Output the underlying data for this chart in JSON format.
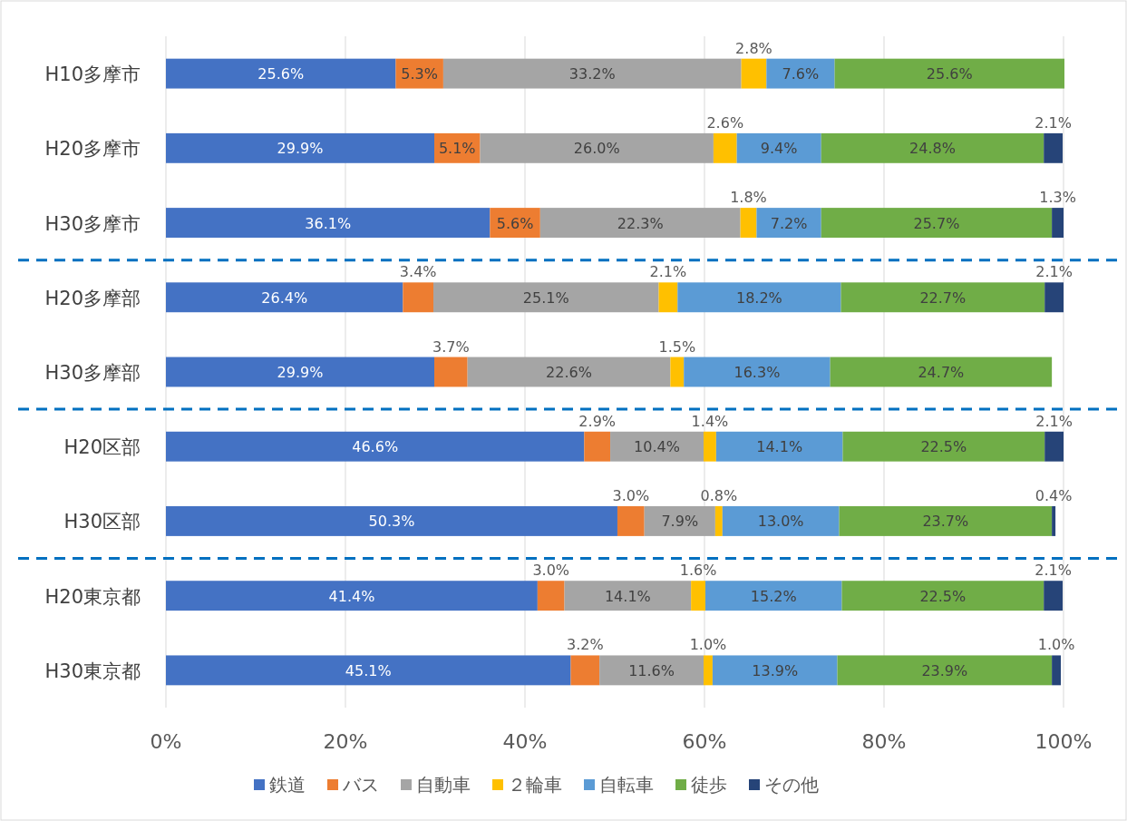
{
  "chart_data": {
    "type": "bar",
    "orientation": "horizontal",
    "stacked": true,
    "categories": [
      "H10多摩市",
      "H20多摩市",
      "H30多摩市",
      "H20多摩部",
      "H30多摩部",
      "H20区部",
      "H30区部",
      "H20東京都",
      "H30東京都"
    ],
    "series": [
      {
        "name": "鉄道",
        "color": "#4472c4",
        "values": [
          25.6,
          29.9,
          36.1,
          26.4,
          29.9,
          46.6,
          50.3,
          41.4,
          45.1
        ],
        "value_labels": [
          "25.6%",
          "29.9%",
          "36.1%",
          "26.4%",
          "29.9%",
          "46.6%",
          "50.3%",
          "41.4%",
          "45.1%"
        ]
      },
      {
        "name": "バス",
        "color": "#ed7d31",
        "values": [
          5.3,
          5.1,
          5.6,
          3.4,
          3.7,
          2.9,
          3.0,
          3.0,
          3.2
        ],
        "value_labels": [
          "5.3%",
          "5.1%",
          "5.6%",
          "3.4%",
          "3.7%",
          "2.9%",
          "3.0%",
          "3.0%",
          "3.2%"
        ]
      },
      {
        "name": "自動車",
        "color": "#a5a5a5",
        "values": [
          33.2,
          26.0,
          22.3,
          25.1,
          22.6,
          10.4,
          7.9,
          14.1,
          11.6
        ],
        "value_labels": [
          "33.2%",
          "26.0%",
          "22.3%",
          "25.1%",
          "22.6%",
          "10.4%",
          "7.9%",
          "14.1%",
          "11.6%"
        ]
      },
      {
        "name": "２輪車",
        "color": "#ffc000",
        "values": [
          2.8,
          2.6,
          1.8,
          2.1,
          1.5,
          1.4,
          0.8,
          1.6,
          1.0
        ],
        "value_labels": [
          "2.8%",
          "2.6%",
          "1.8%",
          "2.1%",
          "1.5%",
          "1.4%",
          "0.8%",
          "1.6%",
          "1.0%"
        ]
      },
      {
        "name": "自転車",
        "color": "#5b9bd5",
        "values": [
          7.6,
          9.4,
          7.2,
          18.2,
          16.3,
          14.1,
          13.0,
          15.2,
          13.9
        ],
        "value_labels": [
          "7.6%",
          "9.4%",
          "7.2%",
          "18.2%",
          "16.3%",
          "14.1%",
          "13.0%",
          "15.2%",
          "13.9%"
        ]
      },
      {
        "name": "徒歩",
        "color": "#70ad47",
        "values": [
          25.6,
          24.8,
          25.7,
          22.7,
          24.7,
          22.5,
          23.7,
          22.5,
          23.9
        ],
        "value_labels": [
          "25.6%",
          "24.8%",
          "25.7%",
          "22.7%",
          "24.7%",
          "22.5%",
          "23.7%",
          "22.5%",
          "23.9%"
        ]
      },
      {
        "name": "その他",
        "color": "#264478",
        "values": [
          null,
          2.1,
          1.3,
          2.1,
          null,
          2.1,
          0.4,
          2.1,
          1.0
        ],
        "value_labels": [
          null,
          "2.1%",
          "1.3%",
          "2.1%",
          null,
          "2.1%",
          "0.4%",
          "2.1%",
          "1.0%"
        ]
      }
    ],
    "xlim": [
      0,
      100
    ],
    "xticks": [
      {
        "value": 0,
        "label": "0%"
      },
      {
        "value": 20,
        "label": "20%"
      },
      {
        "value": 40,
        "label": "40%"
      },
      {
        "value": 60,
        "label": "60%"
      },
      {
        "value": 80,
        "label": "80%"
      },
      {
        "value": 100,
        "label": "100%"
      }
    ],
    "grid": "x",
    "legend": "bottom",
    "ref_lines": [
      {
        "axis": "y",
        "value": "H30多摩市",
        "line_style": "dashed",
        "color": "#0070c0"
      },
      {
        "axis": "y",
        "value": "H30多摩部",
        "line_style": "dashed",
        "color": "#0070c0"
      },
      {
        "axis": "y",
        "value": "H30区部",
        "line_style": "dashed",
        "color": "#0070c0"
      }
    ]
  }
}
